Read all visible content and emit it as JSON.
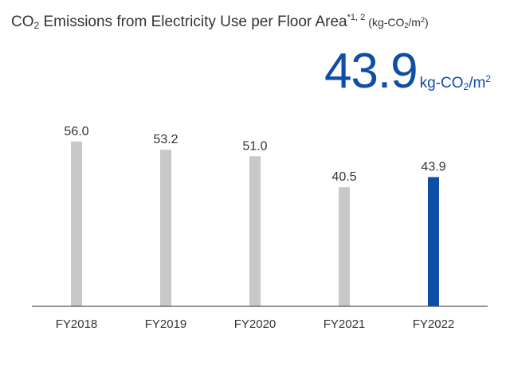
{
  "title": {
    "pre": "CO",
    "sub": "2",
    "main": " Emissions from Electricity Use per Floor Area",
    "note": "*1, 2",
    "unit_pre": "(kg-CO",
    "unit_sub": "2",
    "unit_mid": "/m",
    "unit_sup": "2",
    "unit_post": ")"
  },
  "highlight": {
    "value": "43.9",
    "unit_pre": "kg-CO",
    "unit_sub": "2",
    "unit_mid": "/m",
    "unit_sup": "2"
  },
  "colors": {
    "bar": "#c7c8ca",
    "highlight": "#0d4ea6",
    "axis": "#555555",
    "label": "#333333"
  },
  "chart_data": {
    "type": "bar",
    "categories": [
      "FY2018",
      "FY2019",
      "FY2020",
      "FY2021",
      "FY2022"
    ],
    "values": [
      56.0,
      53.2,
      51.0,
      40.5,
      43.9
    ],
    "value_labels": [
      "56.0",
      "53.2",
      "51.0",
      "40.5",
      "43.9"
    ],
    "highlight_index": 4,
    "ylim": [
      0,
      80
    ],
    "grid": false,
    "legend": "none"
  }
}
